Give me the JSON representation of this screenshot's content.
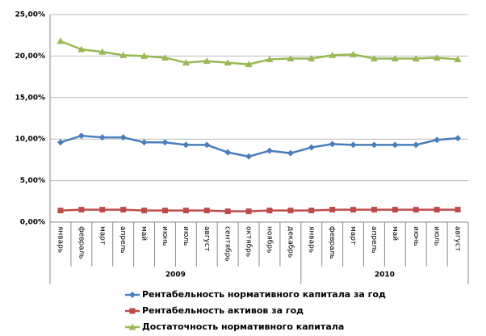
{
  "chart_data": {
    "type": "line",
    "categories": [
      "январь",
      "февраль",
      "март",
      "апрель",
      "май",
      "июнь",
      "июль",
      "август",
      "сентябрь",
      "октябрь",
      "ноябрь",
      "декабрь",
      "январь",
      "февраль",
      "март",
      "апрель",
      "май",
      "июнь",
      "июль",
      "август"
    ],
    "year_groups": [
      {
        "label": "2009",
        "span": 12
      },
      {
        "label": "2010",
        "span": 8
      }
    ],
    "series": [
      {
        "name": "Рентабельность нормативного капитала за год",
        "color": "#4a7ebb",
        "marker": "diamond",
        "values": [
          9.6,
          10.4,
          10.2,
          10.2,
          9.6,
          9.6,
          9.3,
          9.3,
          8.4,
          7.9,
          8.6,
          8.3,
          9.0,
          9.4,
          9.3,
          9.3,
          9.3,
          9.3,
          9.9,
          10.1
        ]
      },
      {
        "name": "Рентабельность активов за год",
        "color": "#be4b48",
        "marker": "square",
        "values": [
          1.4,
          1.5,
          1.5,
          1.5,
          1.4,
          1.4,
          1.4,
          1.4,
          1.3,
          1.3,
          1.4,
          1.4,
          1.4,
          1.5,
          1.5,
          1.5,
          1.5,
          1.5,
          1.5,
          1.5
        ]
      },
      {
        "name": "Достаточность нормативного капитала",
        "color": "#98b954",
        "marker": "triangle",
        "values": [
          21.8,
          20.8,
          20.5,
          20.1,
          20.0,
          19.8,
          19.2,
          19.4,
          19.2,
          19.0,
          19.6,
          19.7,
          19.7,
          20.1,
          20.2,
          19.7,
          19.7,
          19.7,
          19.8,
          19.6
        ]
      }
    ],
    "ylim": [
      0,
      25
    ],
    "yticks": [
      {
        "value": 0,
        "label": "0,00%"
      },
      {
        "value": 5,
        "label": "5,00%"
      },
      {
        "value": 10,
        "label": "10,00%"
      },
      {
        "value": 15,
        "label": "15,00%"
      },
      {
        "value": 20,
        "label": "20,00%"
      },
      {
        "value": 25,
        "label": "25,00%"
      }
    ],
    "grid": true
  }
}
